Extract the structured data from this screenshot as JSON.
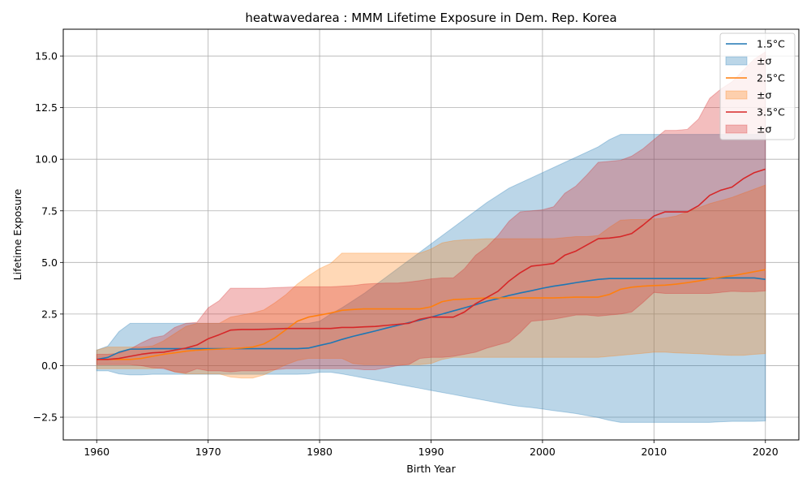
{
  "chart_data": {
    "type": "line",
    "title": "heatwavedarea : MMM Lifetime Exposure in Dem. Rep. Korea",
    "xlabel": "Birth Year",
    "ylabel": "Lifetime Exposure",
    "xlim": [
      1957,
      2023
    ],
    "ylim": [
      -3.6,
      16.3
    ],
    "xticks": [
      1960,
      1970,
      1980,
      1990,
      2000,
      2010,
      2020
    ],
    "yticks": [
      -2.5,
      0.0,
      2.5,
      5.0,
      7.5,
      10.0,
      12.5,
      15.0
    ],
    "grid": true,
    "legend_position": "top-right",
    "series": [
      {
        "name": "1.5°C",
        "band_label": "±σ",
        "color": "#1f77b4",
        "x": [
          1960,
          1961,
          1962,
          1963,
          1964,
          1965,
          1966,
          1967,
          1968,
          1969,
          1970,
          1971,
          1972,
          1973,
          1974,
          1975,
          1976,
          1977,
          1978,
          1979,
          1980,
          1981,
          1982,
          1983,
          1984,
          1985,
          1986,
          1987,
          1988,
          1989,
          1990,
          1991,
          1992,
          1993,
          1994,
          1995,
          1996,
          1997,
          1998,
          1999,
          2000,
          2001,
          2002,
          2003,
          2004,
          2005,
          2006,
          2007,
          2008,
          2009,
          2010,
          2011,
          2012,
          2013,
          2014,
          2015,
          2016,
          2017,
          2018,
          2019,
          2020
        ],
        "values": [
          0.3,
          0.4,
          0.65,
          0.8,
          0.8,
          0.82,
          0.82,
          0.82,
          0.82,
          0.82,
          0.82,
          0.82,
          0.82,
          0.82,
          0.82,
          0.82,
          0.82,
          0.82,
          0.82,
          0.85,
          0.98,
          1.1,
          1.27,
          1.42,
          1.55,
          1.68,
          1.82,
          1.95,
          2.08,
          2.2,
          2.35,
          2.5,
          2.65,
          2.8,
          2.95,
          3.12,
          3.25,
          3.4,
          3.52,
          3.63,
          3.75,
          3.85,
          3.93,
          4.02,
          4.1,
          4.18,
          4.22,
          4.22,
          4.22,
          4.22,
          4.22,
          4.22,
          4.22,
          4.22,
          4.22,
          4.22,
          4.25,
          4.25,
          4.25,
          4.25,
          4.18
        ],
        "upper": [
          0.75,
          0.95,
          1.65,
          2.05,
          2.05,
          2.05,
          2.05,
          2.05,
          2.05,
          2.05,
          2.05,
          2.05,
          2.05,
          2.05,
          2.05,
          2.05,
          2.05,
          2.05,
          2.05,
          2.05,
          2.15,
          2.5,
          2.8,
          3.15,
          3.5,
          3.9,
          4.3,
          4.7,
          5.1,
          5.5,
          5.9,
          6.3,
          6.7,
          7.1,
          7.5,
          7.9,
          8.25,
          8.6,
          8.85,
          9.1,
          9.35,
          9.6,
          9.85,
          10.1,
          10.35,
          10.6,
          10.95,
          11.2,
          11.2,
          11.2,
          11.2,
          11.2,
          11.2,
          11.2,
          11.2,
          11.2,
          11.2,
          11.2,
          11.2,
          11.2,
          11.2
        ],
        "lower": [
          -0.25,
          -0.25,
          -0.4,
          -0.45,
          -0.45,
          -0.42,
          -0.42,
          -0.42,
          -0.42,
          -0.42,
          -0.42,
          -0.42,
          -0.42,
          -0.42,
          -0.42,
          -0.42,
          -0.42,
          -0.42,
          -0.42,
          -0.4,
          -0.32,
          -0.32,
          -0.4,
          -0.5,
          -0.6,
          -0.7,
          -0.8,
          -0.9,
          -1.0,
          -1.1,
          -1.2,
          -1.3,
          -1.4,
          -1.5,
          -1.6,
          -1.7,
          -1.8,
          -1.9,
          -1.98,
          -2.03,
          -2.1,
          -2.18,
          -2.25,
          -2.32,
          -2.42,
          -2.52,
          -2.65,
          -2.75,
          -2.75,
          -2.75,
          -2.75,
          -2.75,
          -2.75,
          -2.75,
          -2.75,
          -2.75,
          -2.72,
          -2.7,
          -2.7,
          -2.7,
          -2.68
        ]
      },
      {
        "name": "2.5°C",
        "band_label": "±σ",
        "color": "#ff7f0e",
        "x": [
          1960,
          1961,
          1962,
          1963,
          1964,
          1965,
          1966,
          1967,
          1968,
          1969,
          1970,
          1971,
          1972,
          1973,
          1974,
          1975,
          1976,
          1977,
          1978,
          1979,
          1980,
          1981,
          1982,
          1983,
          1984,
          1985,
          1986,
          1987,
          1988,
          1989,
          1990,
          1991,
          1992,
          1993,
          1994,
          1995,
          1996,
          1997,
          1998,
          1999,
          2000,
          2001,
          2002,
          2003,
          2004,
          2005,
          2006,
          2007,
          2008,
          2009,
          2010,
          2011,
          2012,
          2013,
          2014,
          2015,
          2016,
          2017,
          2018,
          2019,
          2020
        ],
        "values": [
          0.3,
          0.3,
          0.3,
          0.3,
          0.35,
          0.45,
          0.55,
          0.62,
          0.7,
          0.75,
          0.78,
          0.8,
          0.82,
          0.85,
          0.9,
          1.05,
          1.35,
          1.75,
          2.15,
          2.35,
          2.45,
          2.55,
          2.68,
          2.72,
          2.75,
          2.75,
          2.75,
          2.75,
          2.75,
          2.75,
          2.85,
          3.1,
          3.2,
          3.22,
          3.25,
          3.28,
          3.28,
          3.28,
          3.28,
          3.28,
          3.28,
          3.28,
          3.3,
          3.32,
          3.32,
          3.32,
          3.45,
          3.7,
          3.8,
          3.85,
          3.88,
          3.9,
          3.95,
          4.02,
          4.1,
          4.2,
          4.28,
          4.35,
          4.45,
          4.55,
          4.65
        ],
        "upper": [
          0.75,
          0.9,
          0.9,
          0.9,
          0.9,
          0.95,
          1.2,
          1.55,
          1.9,
          2.05,
          2.05,
          2.05,
          2.35,
          2.45,
          2.55,
          2.7,
          3.05,
          3.45,
          3.95,
          4.35,
          4.7,
          4.95,
          5.45,
          5.45,
          5.45,
          5.45,
          5.45,
          5.45,
          5.45,
          5.45,
          5.65,
          5.95,
          6.05,
          6.1,
          6.12,
          6.15,
          6.15,
          6.15,
          6.15,
          6.15,
          6.15,
          6.15,
          6.2,
          6.25,
          6.25,
          6.3,
          6.7,
          7.05,
          7.08,
          7.08,
          7.1,
          7.15,
          7.25,
          7.45,
          7.65,
          7.85,
          8.0,
          8.15,
          8.35,
          8.55,
          8.75
        ],
        "lower": [
          -0.15,
          -0.15,
          -0.15,
          -0.15,
          -0.15,
          -0.15,
          -0.1,
          -0.3,
          -0.4,
          -0.4,
          -0.4,
          -0.4,
          -0.55,
          -0.6,
          -0.6,
          -0.45,
          -0.2,
          0.05,
          0.25,
          0.35,
          0.35,
          0.35,
          0.35,
          0.1,
          0.05,
          0.05,
          0.05,
          0.05,
          0.05,
          0.05,
          0.1,
          0.3,
          0.4,
          0.4,
          0.4,
          0.4,
          0.4,
          0.4,
          0.4,
          0.4,
          0.4,
          0.4,
          0.4,
          0.4,
          0.4,
          0.4,
          0.45,
          0.5,
          0.55,
          0.6,
          0.65,
          0.65,
          0.62,
          0.6,
          0.58,
          0.55,
          0.52,
          0.5,
          0.5,
          0.55,
          0.58
        ]
      },
      {
        "name": "3.5°C",
        "band_label": "±σ",
        "color": "#d62728",
        "x": [
          1960,
          1961,
          1962,
          1963,
          1964,
          1965,
          1966,
          1967,
          1968,
          1969,
          1970,
          1971,
          1972,
          1973,
          1974,
          1975,
          1976,
          1977,
          1978,
          1979,
          1980,
          1981,
          1982,
          1983,
          1984,
          1985,
          1986,
          1987,
          1988,
          1989,
          1990,
          1991,
          1992,
          1993,
          1994,
          1995,
          1996,
          1997,
          1998,
          1999,
          2000,
          2001,
          2002,
          2003,
          2004,
          2005,
          2006,
          2007,
          2008,
          2009,
          2010,
          2011,
          2012,
          2013,
          2014,
          2015,
          2016,
          2017,
          2018,
          2019,
          2020
        ],
        "values": [
          0.3,
          0.3,
          0.35,
          0.45,
          0.55,
          0.62,
          0.65,
          0.75,
          0.85,
          1.0,
          1.3,
          1.5,
          1.72,
          1.75,
          1.75,
          1.76,
          1.78,
          1.8,
          1.8,
          1.8,
          1.8,
          1.8,
          1.85,
          1.85,
          1.88,
          1.9,
          1.95,
          2.0,
          2.05,
          2.25,
          2.35,
          2.35,
          2.35,
          2.6,
          3.0,
          3.3,
          3.6,
          4.1,
          4.5,
          4.82,
          4.88,
          4.95,
          5.35,
          5.55,
          5.85,
          6.15,
          6.18,
          6.25,
          6.4,
          6.8,
          7.25,
          7.45,
          7.45,
          7.45,
          7.75,
          8.25,
          8.5,
          8.65,
          9.05,
          9.35,
          9.52
        ],
        "upper": [
          0.55,
          0.55,
          0.6,
          0.8,
          1.1,
          1.35,
          1.45,
          1.85,
          2.05,
          2.1,
          2.8,
          3.15,
          3.75,
          3.75,
          3.75,
          3.75,
          3.78,
          3.8,
          3.82,
          3.82,
          3.82,
          3.82,
          3.85,
          3.88,
          3.95,
          3.98,
          4.0,
          4.0,
          4.05,
          4.12,
          4.2,
          4.25,
          4.25,
          4.7,
          5.35,
          5.75,
          6.3,
          7.0,
          7.45,
          7.5,
          7.55,
          7.7,
          8.35,
          8.7,
          9.25,
          9.85,
          9.9,
          9.95,
          10.15,
          10.5,
          10.95,
          11.4,
          11.4,
          11.45,
          11.95,
          12.95,
          13.4,
          13.75,
          14.3,
          14.85,
          15.2
        ],
        "lower": [
          0.05,
          0.05,
          0.05,
          0.05,
          0.0,
          -0.1,
          -0.15,
          -0.3,
          -0.35,
          -0.15,
          -0.25,
          -0.25,
          -0.3,
          -0.25,
          -0.25,
          -0.25,
          -0.2,
          -0.15,
          -0.15,
          -0.15,
          -0.15,
          -0.15,
          -0.15,
          -0.15,
          -0.2,
          -0.2,
          -0.1,
          0.0,
          0.05,
          0.35,
          0.4,
          0.4,
          0.45,
          0.55,
          0.65,
          0.85,
          1.0,
          1.15,
          1.6,
          2.15,
          2.2,
          2.25,
          2.35,
          2.45,
          2.45,
          2.4,
          2.45,
          2.5,
          2.6,
          3.05,
          3.55,
          3.5,
          3.5,
          3.5,
          3.5,
          3.5,
          3.55,
          3.6,
          3.58,
          3.58,
          3.62
        ]
      }
    ]
  }
}
